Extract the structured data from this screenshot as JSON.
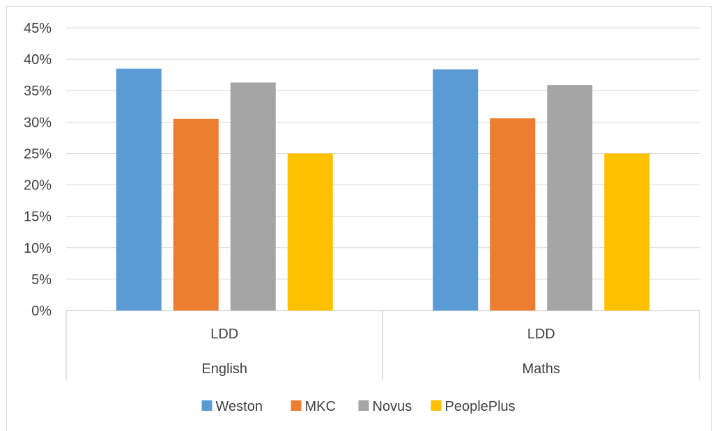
{
  "chart_data": {
    "type": "bar",
    "groups": [
      {
        "label": "LDD",
        "parent": "English"
      },
      {
        "label": "LDD",
        "parent": "Maths"
      }
    ],
    "parents": [
      "English",
      "Maths"
    ],
    "series": [
      {
        "name": "Weston",
        "color": "#5B9BD5",
        "values": [
          0.385,
          0.384
        ]
      },
      {
        "name": "MKC",
        "color": "#ED7D31",
        "values": [
          0.305,
          0.306
        ]
      },
      {
        "name": "Novus",
        "color": "#A5A5A5",
        "values": [
          0.363,
          0.359
        ]
      },
      {
        "name": "PeoplePlus",
        "color": "#FFC000",
        "values": [
          0.25,
          0.25
        ]
      }
    ],
    "ylim": [
      0,
      0.45
    ],
    "yticks": [
      "0%",
      "5%",
      "10%",
      "15%",
      "20%",
      "25%",
      "30%",
      "35%",
      "40%",
      "45%"
    ],
    "grid": true,
    "legend_position": "bottom",
    "title": "",
    "xlabel": "",
    "ylabel": ""
  }
}
